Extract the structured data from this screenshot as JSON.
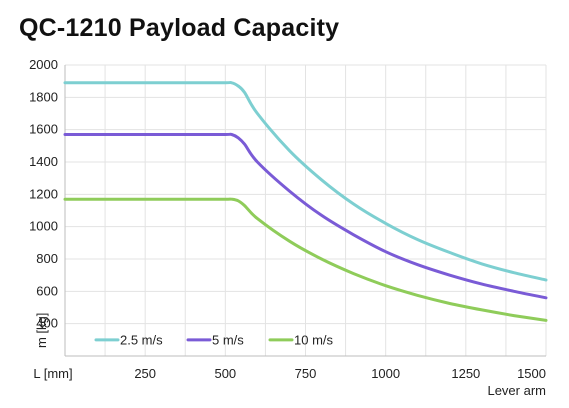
{
  "chart_data": {
    "type": "line",
    "title": "QC-1210 Payload Capacity",
    "xlabel": "Lever arm",
    "x_unit_label": "L [mm]",
    "ylabel": "m [kg]",
    "xlim": [
      0,
      1500
    ],
    "ylim": [
      200,
      2000
    ],
    "x_ticks": [
      250,
      500,
      750,
      1000,
      1250,
      1500
    ],
    "x_tick_labels": [
      "250",
      "500",
      "750",
      "1000",
      "1250",
      "1500"
    ],
    "y_ticks": [
      400,
      600,
      800,
      1000,
      1200,
      1400,
      1600,
      1800,
      2000
    ],
    "y_tick_labels": [
      "400",
      "600",
      "800",
      "1000",
      "1200",
      "1400",
      "1600",
      "1800",
      "2000"
    ],
    "grid": true,
    "legend_position": "bottom-left",
    "x": [
      0,
      100,
      200,
      300,
      400,
      500,
      520,
      540,
      560,
      600,
      700,
      800,
      900,
      1000,
      1100,
      1200,
      1300,
      1400,
      1500
    ],
    "series": [
      {
        "name": "2.5 m/s",
        "color": "#7dcfd1",
        "values": [
          1890,
          1890,
          1890,
          1890,
          1890,
          1890,
          1890,
          1870,
          1830,
          1700,
          1470,
          1290,
          1140,
          1020,
          920,
          840,
          770,
          715,
          670
        ]
      },
      {
        "name": "5 m/s",
        "color": "#7a5bd6",
        "values": [
          1570,
          1570,
          1570,
          1570,
          1570,
          1570,
          1570,
          1550,
          1510,
          1400,
          1220,
          1070,
          950,
          845,
          765,
          700,
          645,
          600,
          560
        ]
      },
      {
        "name": "10 m/s",
        "color": "#8fcc5a",
        "values": [
          1170,
          1170,
          1170,
          1170,
          1170,
          1170,
          1170,
          1160,
          1130,
          1050,
          910,
          800,
          710,
          635,
          575,
          525,
          485,
          450,
          420
        ]
      }
    ]
  }
}
